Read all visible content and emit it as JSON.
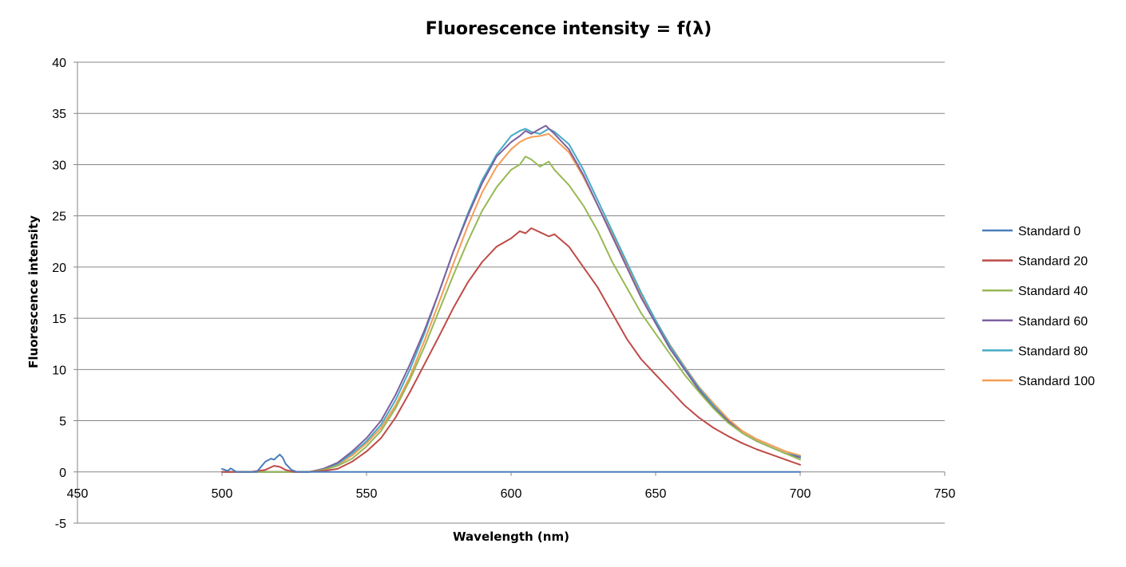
{
  "chart_data": {
    "type": "line",
    "title": "Fluorescence intensity = f(λ)",
    "xlabel": "Wavelength (nm)",
    "ylabel": "Fluorescence intensity",
    "xlim": [
      450,
      750
    ],
    "ylim": [
      -5,
      40
    ],
    "xticks": [
      450,
      500,
      550,
      600,
      650,
      700,
      750
    ],
    "yticks": [
      -5,
      0,
      5,
      10,
      15,
      20,
      25,
      30,
      35,
      40
    ],
    "grid": "horizontal",
    "legend_position": "right",
    "series": [
      {
        "name": "Standard 0",
        "color": "#4a7ebb",
        "x": [
          500,
          502,
          503,
          505,
          508,
          510,
          512,
          515,
          517,
          518,
          520,
          521,
          522,
          524,
          526,
          530,
          540,
          560,
          580,
          600,
          620,
          640,
          660,
          680,
          700
        ],
        "y": [
          0.3,
          0.1,
          0.35,
          0.0,
          0.0,
          0.0,
          0.0,
          1.0,
          1.3,
          1.2,
          1.7,
          1.4,
          0.8,
          0.2,
          0.0,
          0.0,
          0.0,
          0.0,
          0.0,
          0.0,
          0.0,
          0.0,
          0.0,
          0.0,
          0.0
        ]
      },
      {
        "name": "Standard 20",
        "color": "#be4b48",
        "x": [
          500,
          505,
          510,
          515,
          518,
          520,
          522,
          525,
          530,
          535,
          540,
          545,
          550,
          555,
          560,
          565,
          570,
          575,
          580,
          585,
          590,
          595,
          600,
          603,
          605,
          607,
          610,
          613,
          615,
          620,
          625,
          630,
          635,
          640,
          645,
          650,
          655,
          660,
          665,
          670,
          675,
          680,
          685,
          690,
          695,
          700
        ],
        "y": [
          0.0,
          0.0,
          0.0,
          0.2,
          0.6,
          0.5,
          0.2,
          0.0,
          0.0,
          0.1,
          0.3,
          1.0,
          2.0,
          3.3,
          5.3,
          7.8,
          10.5,
          13.2,
          16.0,
          18.5,
          20.5,
          22.0,
          22.8,
          23.5,
          23.3,
          23.8,
          23.4,
          23.0,
          23.2,
          22.0,
          20.0,
          18.0,
          15.5,
          13.0,
          11.0,
          9.5,
          8.0,
          6.5,
          5.3,
          4.3,
          3.5,
          2.8,
          2.2,
          1.7,
          1.2,
          0.7
        ]
      },
      {
        "name": "Standard 40",
        "color": "#98b954",
        "x": [
          500,
          510,
          520,
          530,
          535,
          540,
          545,
          550,
          555,
          560,
          565,
          570,
          575,
          580,
          585,
          590,
          595,
          600,
          603,
          605,
          607,
          610,
          613,
          615,
          620,
          625,
          630,
          635,
          640,
          645,
          650,
          655,
          660,
          665,
          670,
          675,
          680,
          685,
          690,
          695,
          700
        ],
        "y": [
          0.0,
          0.0,
          0.0,
          0.0,
          0.2,
          0.6,
          1.3,
          2.5,
          4.0,
          6.2,
          9.0,
          12.2,
          15.7,
          19.2,
          22.5,
          25.5,
          27.8,
          29.5,
          30.0,
          30.8,
          30.5,
          29.8,
          30.3,
          29.5,
          28.0,
          26.0,
          23.5,
          20.5,
          18.0,
          15.5,
          13.5,
          11.5,
          9.5,
          7.8,
          6.2,
          4.8,
          3.8,
          3.0,
          2.4,
          1.8,
          1.2
        ]
      },
      {
        "name": "Standard 60",
        "color": "#7d60a0",
        "x": [
          500,
          510,
          520,
          530,
          535,
          540,
          545,
          550,
          555,
          560,
          565,
          570,
          575,
          580,
          585,
          590,
          595,
          600,
          603,
          605,
          607,
          610,
          612,
          615,
          620,
          625,
          630,
          635,
          640,
          645,
          650,
          655,
          660,
          665,
          670,
          675,
          680,
          685,
          690,
          695,
          700
        ],
        "y": [
          0.0,
          0.0,
          0.0,
          0.0,
          0.3,
          0.9,
          2.0,
          3.3,
          5.0,
          7.5,
          10.5,
          13.8,
          17.5,
          21.5,
          25.0,
          28.2,
          30.8,
          32.2,
          32.8,
          33.3,
          33.0,
          33.5,
          33.8,
          33.0,
          31.5,
          29.0,
          26.0,
          23.0,
          20.0,
          17.0,
          14.5,
          12.0,
          10.0,
          8.0,
          6.3,
          5.0,
          3.8,
          3.0,
          2.4,
          1.8,
          1.4
        ]
      },
      {
        "name": "Standard 80",
        "color": "#46aac5",
        "x": [
          500,
          510,
          520,
          530,
          535,
          540,
          545,
          550,
          555,
          560,
          565,
          570,
          575,
          580,
          585,
          590,
          595,
          600,
          603,
          605,
          607,
          610,
          613,
          615,
          620,
          625,
          630,
          635,
          640,
          645,
          650,
          655,
          660,
          665,
          670,
          675,
          680,
          685,
          690,
          695,
          700
        ],
        "y": [
          0.0,
          0.0,
          0.0,
          0.0,
          0.2,
          0.8,
          1.8,
          3.0,
          4.6,
          7.0,
          10.0,
          13.5,
          17.5,
          21.5,
          25.2,
          28.5,
          31.0,
          32.8,
          33.3,
          33.5,
          33.2,
          33.0,
          33.5,
          33.2,
          32.0,
          29.5,
          26.5,
          23.5,
          20.5,
          17.5,
          14.8,
          12.3,
          10.2,
          8.2,
          6.5,
          5.0,
          3.8,
          3.0,
          2.4,
          1.8,
          1.5
        ]
      },
      {
        "name": "Standard 100",
        "color": "#f59d56",
        "x": [
          500,
          510,
          520,
          530,
          535,
          540,
          545,
          550,
          555,
          560,
          565,
          570,
          575,
          580,
          585,
          590,
          595,
          600,
          603,
          605,
          607,
          610,
          613,
          615,
          620,
          625,
          630,
          635,
          640,
          645,
          650,
          655,
          660,
          665,
          670,
          675,
          680,
          685,
          690,
          695,
          700
        ],
        "y": [
          0.0,
          0.0,
          0.0,
          0.0,
          0.2,
          0.7,
          1.6,
          2.8,
          4.3,
          6.5,
          9.3,
          12.8,
          16.5,
          20.3,
          24.0,
          27.3,
          29.8,
          31.5,
          32.2,
          32.5,
          32.7,
          32.8,
          33.0,
          32.5,
          31.2,
          28.8,
          26.0,
          23.2,
          20.2,
          17.3,
          14.8,
          12.4,
          10.3,
          8.3,
          6.7,
          5.2,
          4.0,
          3.2,
          2.6,
          2.0,
          1.6
        ]
      }
    ]
  }
}
